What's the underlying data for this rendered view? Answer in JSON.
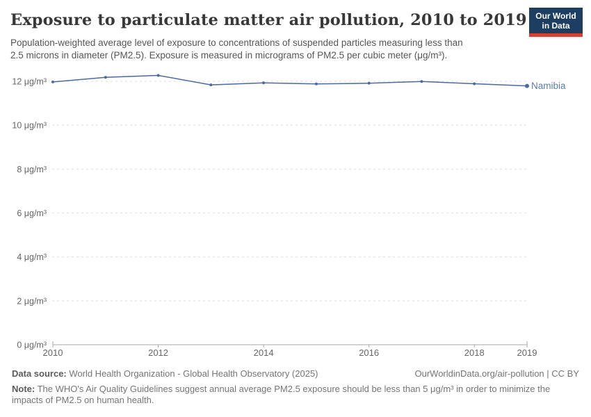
{
  "header": {
    "title": "Exposure to particulate matter air pollution, 2010 to 2019",
    "subtitle": "Population-weighted average level of exposure to concentrations of suspended particles measuring less than\n2.5 microns in diameter (PM2.5). Exposure is measured in micrograms of PM2.5 per cubic meter (μg/m³).",
    "logo": {
      "line1": "Our World",
      "line2": "in Data",
      "bg_color": "#1d3d63",
      "stripe_color": "#d6402f"
    }
  },
  "chart_data": {
    "type": "line",
    "title": "Exposure to particulate matter air pollution, 2010 to 2019",
    "x": [
      2010,
      2011,
      2012,
      2013,
      2014,
      2015,
      2016,
      2017,
      2018,
      2019
    ],
    "series": [
      {
        "name": "Namibia",
        "values": [
          11.97,
          12.18,
          12.27,
          11.84,
          11.93,
          11.88,
          11.91,
          11.99,
          11.89,
          11.79
        ],
        "color": "#4c6a9c",
        "label_color": "#5b7cab"
      }
    ],
    "xlabel": "",
    "ylabel": "",
    "ylim": [
      0,
      12
    ],
    "ytick_interval": 2,
    "ytick_suffix": " μg/m³",
    "xticks": [
      2010,
      2012,
      2014,
      2016,
      2018,
      2019
    ],
    "grid": "horizontal-dashed",
    "legend_position": "end-of-line",
    "colors": {
      "gridline": "#dedede",
      "axis": "#a8a8a8",
      "tick_label": "#666666"
    }
  },
  "footer": {
    "datasource_label": "Data source:",
    "datasource_text": " World Health Organization - Global Health Observatory (2025)",
    "link_text": "OurWorldinData.org/air-pollution | CC BY",
    "note_label": "Note:",
    "note_text": " The WHO's Air Quality Guidelines suggest annual average PM2.5 exposure should be less than 5 μg/m³ in order to minimize the\nimpacts of PM2.5 on human health."
  }
}
